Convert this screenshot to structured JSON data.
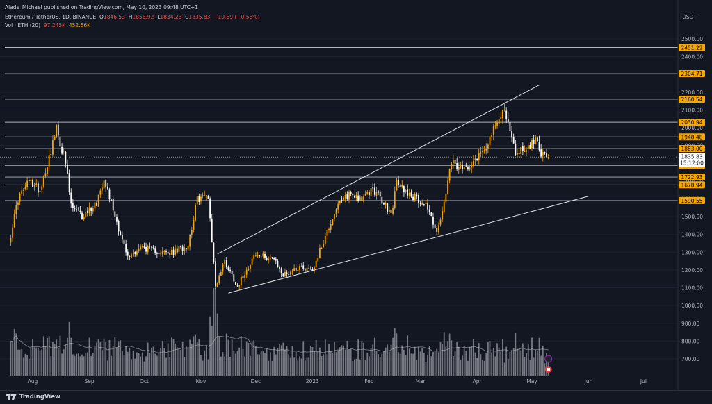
{
  "header": {
    "published": "Alade_Michael published on TradingView.com, May 10, 2023 09:48 UTC+1",
    "symbol": "Ethereum / TetherUS, 1D, BINANCE",
    "o_label": "O",
    "o_value": "1846.53",
    "h_label": "H",
    "h_value": "1858.92",
    "l_label": "L",
    "l_value": "1834.23",
    "c_label": "C",
    "c_value": "1835.83",
    "change": "−10.69 (−0.58%)",
    "vol_label": "Vol · ETH (20)",
    "vol_value": "97.245K",
    "vol_ma": "452.66K"
  },
  "axis_unit": "USDT",
  "footer": {
    "brand": "TradingView"
  },
  "colors": {
    "background": "#131722",
    "up_candle": "#f7a600",
    "down_candle": "#ffffff",
    "level_line": "#b2b5be",
    "trendline": "#e0e3eb",
    "tag_bg": "#f7a600",
    "tag_text": "#000000",
    "price_tag_bg": "#ffffff"
  },
  "chart_data": {
    "type": "candlestick",
    "y_ticks": [
      2500,
      2400,
      2300,
      2200,
      2100,
      2000,
      1900,
      1800,
      1700,
      1600,
      1500,
      1400,
      1300,
      1200,
      1100,
      1000,
      900,
      800,
      700
    ],
    "y_tick_labels": [
      "2500.00",
      "2400.00",
      "2300.00",
      "2200.00",
      "2100.00",
      "2000.00",
      "1900.00",
      "1800.00",
      "1700.00",
      "1600.00",
      "1500.00",
      "1400.00",
      "1300.00",
      "1200.00",
      "1100.00",
      "1000.00",
      "900.00",
      "800.00",
      "700.00"
    ],
    "x_labels": [
      "Aug",
      "Sep",
      "Oct",
      "Nov",
      "Dec",
      "2023",
      "Feb",
      "Mar",
      "Apr",
      "May",
      "Jun",
      "Jul"
    ],
    "x_label_dates": [
      "2022-08-01",
      "2022-09-01",
      "2022-10-01",
      "2022-11-01",
      "2022-12-01",
      "2023-01-01",
      "2023-02-01",
      "2023-03-01",
      "2023-04-01",
      "2023-05-01",
      "2023-06-01",
      "2023-07-01"
    ],
    "levels": [
      {
        "value": 2451.22,
        "label": "2451.22"
      },
      {
        "value": 2304.71,
        "label": "2304.71"
      },
      {
        "value": 2160.54,
        "label": "2160.54"
      },
      {
        "value": 2030.94,
        "label": "2030.94"
      },
      {
        "value": 1948.48,
        "label": "1948.48"
      },
      {
        "value": 1883.0,
        "label": "1883.00"
      },
      {
        "value": 1788.41,
        "label": "1788.41"
      },
      {
        "value": 1722.93,
        "label": "1722.93"
      },
      {
        "value": 1678.94,
        "label": "1678.94"
      },
      {
        "value": 1590.55,
        "label": "1590.55"
      }
    ],
    "last_price": {
      "value": 1835.83,
      "label": "1835.83",
      "countdown": "15:12:00"
    },
    "trendlines": [
      {
        "name": "upper",
        "from": {
          "date": "2022-11-10",
          "price": 1290
        },
        "to": {
          "date": "2023-05-05",
          "price": 2240
        }
      },
      {
        "name": "lower",
        "from": {
          "date": "2022-11-16",
          "price": 1070
        },
        "to": {
          "date": "2023-06-01",
          "price": 1615
        }
      }
    ],
    "anchors": [
      {
        "date": "2022-07-20",
        "price": 1400
      },
      {
        "date": "2022-07-24",
        "price": 1600
      },
      {
        "date": "2022-07-30",
        "price": 1700
      },
      {
        "date": "2022-08-05",
        "price": 1650
      },
      {
        "date": "2022-08-14",
        "price": 1990
      },
      {
        "date": "2022-08-19",
        "price": 1800
      },
      {
        "date": "2022-08-22",
        "price": 1560
      },
      {
        "date": "2022-08-28",
        "price": 1500
      },
      {
        "date": "2022-09-05",
        "price": 1580
      },
      {
        "date": "2022-09-09",
        "price": 1720
      },
      {
        "date": "2022-09-13",
        "price": 1580
      },
      {
        "date": "2022-09-18",
        "price": 1400
      },
      {
        "date": "2022-09-22",
        "price": 1270
      },
      {
        "date": "2022-09-29",
        "price": 1330
      },
      {
        "date": "2022-10-10",
        "price": 1300
      },
      {
        "date": "2022-10-15",
        "price": 1290
      },
      {
        "date": "2022-10-25",
        "price": 1340
      },
      {
        "date": "2022-10-30",
        "price": 1600
      },
      {
        "date": "2022-11-05",
        "price": 1620
      },
      {
        "date": "2022-11-09",
        "price": 1110
      },
      {
        "date": "2022-11-14",
        "price": 1250
      },
      {
        "date": "2022-11-21",
        "price": 1110
      },
      {
        "date": "2022-11-30",
        "price": 1280
      },
      {
        "date": "2022-12-10",
        "price": 1270
      },
      {
        "date": "2022-12-16",
        "price": 1170
      },
      {
        "date": "2022-12-25",
        "price": 1220
      },
      {
        "date": "2023-01-01",
        "price": 1200
      },
      {
        "date": "2023-01-14",
        "price": 1550
      },
      {
        "date": "2023-01-21",
        "price": 1630
      },
      {
        "date": "2023-01-29",
        "price": 1600
      },
      {
        "date": "2023-02-03",
        "price": 1660
      },
      {
        "date": "2023-02-13",
        "price": 1510
      },
      {
        "date": "2023-02-16",
        "price": 1690
      },
      {
        "date": "2023-02-24",
        "price": 1620
      },
      {
        "date": "2023-03-04",
        "price": 1570
      },
      {
        "date": "2023-03-10",
        "price": 1420
      },
      {
        "date": "2023-03-12",
        "price": 1470
      },
      {
        "date": "2023-03-18",
        "price": 1800
      },
      {
        "date": "2023-03-24",
        "price": 1760
      },
      {
        "date": "2023-04-04",
        "price": 1870
      },
      {
        "date": "2023-04-13",
        "price": 2040
      },
      {
        "date": "2023-04-16",
        "price": 2120
      },
      {
        "date": "2023-04-20",
        "price": 1930
      },
      {
        "date": "2023-04-22",
        "price": 1860
      },
      {
        "date": "2023-04-26",
        "price": 1880
      },
      {
        "date": "2023-04-29",
        "price": 1890
      },
      {
        "date": "2023-05-04",
        "price": 1940
      },
      {
        "date": "2023-05-06",
        "price": 1860
      },
      {
        "date": "2023-05-10",
        "price": 1835
      }
    ],
    "volume_range": [
      0,
      3200
    ],
    "volume_ma_window": 20
  }
}
